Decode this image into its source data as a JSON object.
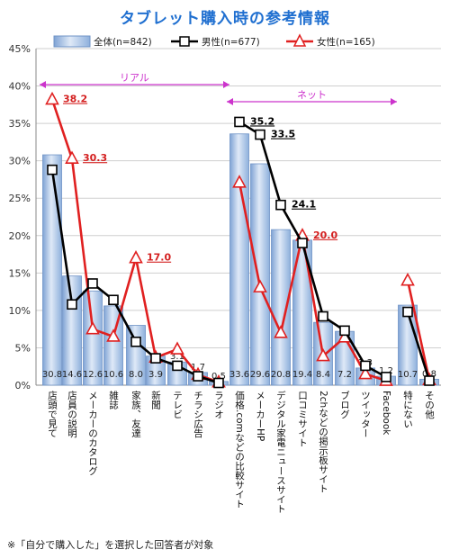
{
  "title": "タブレット購入時の参考情報",
  "footnote": "※「自分で購入した」を選択した回答者が対象",
  "chart_data": {
    "type": "bar",
    "title": "タブレット購入時の参考情報",
    "ylim": [
      0,
      45
    ],
    "yticks": [
      "0%",
      "5%",
      "10%",
      "15%",
      "20%",
      "25%",
      "30%",
      "35%",
      "40%",
      "45%"
    ],
    "grid": true,
    "legend_position": "top",
    "categories": [
      "店頭で見て",
      "店員の説明",
      "メーカーのカタログ",
      "雑誌",
      "家族、友達",
      "新聞",
      "テレビ",
      "チラシ広告",
      "ラジオ",
      "価格.comなどの比較サイト",
      "メーカーHP",
      "デジタル家電ニュースサイト",
      "口コミサイト",
      "2chなどの掲示板サイト",
      "ブログ",
      "ツイッター",
      "Facebook",
      "特にない",
      "その他"
    ],
    "groups": [
      {
        "label": "リアル",
        "from": 0,
        "to": 8
      },
      {
        "label": "ネット",
        "from": 9,
        "to": 16
      }
    ],
    "series": [
      {
        "name": "全体(n=842)",
        "kind": "bar",
        "color": "#a9c4e6",
        "values": [
          30.8,
          14.6,
          12.6,
          10.6,
          8.0,
          3.9,
          3.1,
          1.7,
          0.5,
          33.6,
          29.6,
          20.8,
          19.4,
          8.4,
          7.2,
          2.3,
          1.2,
          10.7,
          0.8
        ],
        "labels": [
          "30.8",
          "14.6",
          "12.6",
          "10.6",
          "8.0",
          "3.9",
          "3.1",
          "1.7",
          "0.5",
          "33.6",
          "29.6",
          "20.8",
          "19.4",
          "8.4",
          "7.2",
          "2.3",
          "1.2",
          "10.7",
          "0.8"
        ]
      },
      {
        "name": "男性(n=677)",
        "kind": "line",
        "marker": "square",
        "color": "#000000",
        "values": [
          28.8,
          10.8,
          13.6,
          11.4,
          5.8,
          3.6,
          2.6,
          1.2,
          0.3,
          35.2,
          33.5,
          24.1,
          19.0,
          9.2,
          7.3,
          2.6,
          1.1,
          9.8,
          0.6
        ],
        "callouts": {
          "9": "35.2",
          "10": "33.5",
          "11": "24.1"
        }
      },
      {
        "name": "女性(n=165)",
        "kind": "line",
        "marker": "triangle",
        "color": "#e02020",
        "values": [
          38.2,
          30.3,
          7.5,
          6.5,
          17.0,
          3.7,
          4.8,
          1.4,
          0.4,
          27.1,
          13.1,
          7.0,
          20.0,
          3.9,
          6.4,
          1.5,
          0.6,
          14.0,
          0.7
        ],
        "callouts": {
          "0": "38.2",
          "1": "30.3",
          "4": "17.0",
          "12": "20.0"
        }
      }
    ]
  }
}
